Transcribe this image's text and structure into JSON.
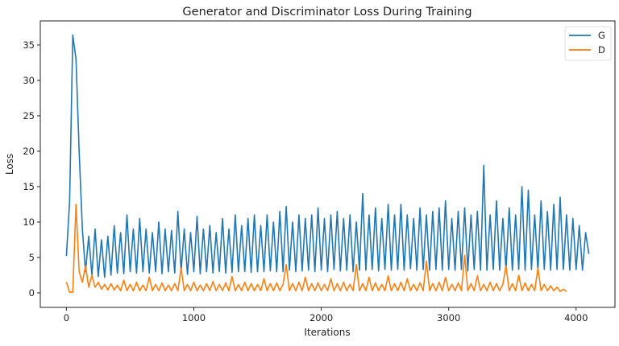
{
  "chart_data": {
    "type": "line",
    "title": "Generator and Discriminator Loss During Training",
    "xlabel": "Iterations",
    "ylabel": "Loss",
    "xlim": [
      -205,
      4305
    ],
    "ylim": [
      -2.05,
      38.4
    ],
    "xticks": [
      0,
      1000,
      2000,
      3000,
      4000
    ],
    "yticks": [
      0,
      5,
      10,
      15,
      20,
      25,
      30,
      35
    ],
    "grid": false,
    "legend_position": "top-right",
    "x_step": 25,
    "series": [
      {
        "name": "G",
        "color": "#1f77b4",
        "values": [
          5.2,
          13,
          36.4,
          33,
          20,
          9,
          3,
          8,
          2.5,
          9,
          2.3,
          7.5,
          2.2,
          8,
          2.5,
          9.5,
          2.8,
          8.5,
          2.7,
          11,
          3,
          9,
          2.8,
          10.5,
          3,
          9,
          2.8,
          8.5,
          3,
          10,
          2.7,
          9,
          3,
          8.8,
          2.8,
          11.5,
          3,
          9,
          2.6,
          8.5,
          3,
          10.8,
          2.7,
          9,
          3,
          9.5,
          2.8,
          8.5,
          3,
          10.5,
          2.8,
          9,
          2.9,
          11,
          3,
          9.5,
          3,
          10.5,
          2.9,
          11,
          3,
          9.5,
          3,
          11,
          3.1,
          10,
          3,
          11.5,
          3,
          12.2,
          3.2,
          10,
          3,
          11,
          3.1,
          10.5,
          3.2,
          11,
          3,
          12,
          3.2,
          10.5,
          3,
          11,
          3.3,
          11.5,
          3.1,
          10.5,
          3.2,
          11,
          3,
          10,
          3.2,
          14,
          3.2,
          11,
          3.3,
          12,
          3.1,
          10.5,
          3.3,
          12.5,
          3.2,
          11,
          3.3,
          12.5,
          3.2,
          11,
          3.4,
          10.5,
          3.2,
          12,
          3.3,
          11,
          3.2,
          11.5,
          3.3,
          12,
          3.2,
          13,
          3.3,
          10.5,
          3.2,
          11.5,
          3.3,
          12,
          3.1,
          11,
          3.3,
          11.5,
          3.2,
          18,
          3.2,
          11,
          3.3,
          13,
          3.2,
          10.5,
          3.3,
          12,
          3.2,
          11,
          3.3,
          15,
          3.2,
          14.5,
          3.3,
          11,
          3.2,
          13,
          3.3,
          11.5,
          3.2,
          12.5,
          3.3,
          13.5,
          3.3,
          11,
          3.2,
          10.5,
          3.3,
          9.5,
          3.2,
          8.5,
          5.5
        ]
      },
      {
        "name": "D",
        "color": "#ff7f0e",
        "values": [
          1.5,
          0.1,
          0.1,
          12.5,
          3,
          1.5,
          3.8,
          0.8,
          2.5,
          0.8,
          1.5,
          0.5,
          1.2,
          0.4,
          1.3,
          0.4,
          1.1,
          0.3,
          1.8,
          0.3,
          1.2,
          0.3,
          1.5,
          0.3,
          1.1,
          0.3,
          2.2,
          0.3,
          1.2,
          0.3,
          1.4,
          0.3,
          1.1,
          0.3,
          1.3,
          0.3,
          3.5,
          0.3,
          1.2,
          0.3,
          1.5,
          0.3,
          1.1,
          0.3,
          1.3,
          0.3,
          1.6,
          0.3,
          1.2,
          0.3,
          1.4,
          0.3,
          2.3,
          0.3,
          1.2,
          0.3,
          1.5,
          0.3,
          1.3,
          0.3,
          1.2,
          0.3,
          2,
          0.3,
          1.3,
          0.3,
          1.4,
          0.3,
          1.2,
          4,
          0.3,
          1.3,
          0.3,
          1.5,
          0.3,
          2.2,
          0.3,
          1.3,
          0.3,
          1.4,
          0.3,
          1.2,
          0.3,
          2,
          0.3,
          1.3,
          0.3,
          1.5,
          0.3,
          1.2,
          0.3,
          4,
          0.3,
          1.3,
          0.3,
          2.2,
          0.3,
          1.4,
          0.3,
          1.2,
          0.3,
          2.4,
          0.3,
          1.3,
          0.3,
          1.5,
          0.3,
          2,
          0.3,
          1.2,
          0.3,
          1.4,
          0.3,
          4.5,
          0.3,
          1.3,
          0.3,
          1.5,
          0.3,
          2.2,
          0.3,
          1.2,
          0.3,
          1.4,
          0.3,
          5.3,
          0.3,
          1.3,
          0.3,
          2.4,
          0.3,
          1.2,
          0.3,
          1.5,
          0.3,
          1.3,
          0.3,
          1.2,
          3.8,
          0.3,
          1.3,
          0.3,
          2.5,
          0.3,
          1.4,
          0.3,
          1.2,
          0.3,
          3.5,
          0.3,
          1.2,
          0.3,
          1,
          0.3,
          0.8,
          0.2,
          0.5,
          0.2
        ]
      }
    ]
  }
}
